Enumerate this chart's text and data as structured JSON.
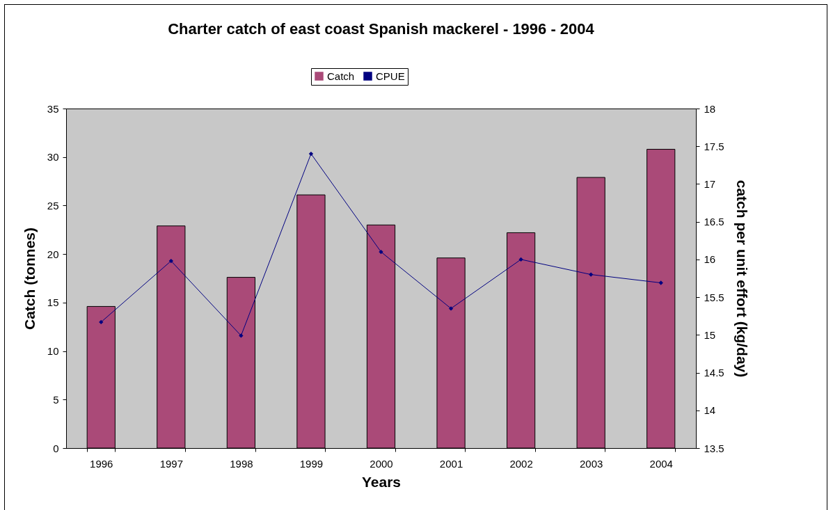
{
  "chart_data": {
    "type": "bar",
    "title": "Charter catch of east coast Spanish mackerel - 1996 - 2004",
    "xlabel": "Years",
    "ylabel": "Catch (tonnes)",
    "y2label": "catch per unit effort (kg/day)",
    "categories": [
      "1996",
      "1997",
      "1998",
      "1999",
      "2000",
      "2001",
      "2002",
      "2003",
      "2004"
    ],
    "series": [
      {
        "name": "Catch",
        "color": "#aa4a78",
        "values": [
          14.6,
          22.9,
          17.6,
          26.1,
          23.0,
          19.6,
          22.2,
          27.9,
          30.8
        ]
      },
      {
        "name": "CPUE",
        "type": "line",
        "axis": "y2",
        "color": "#000080",
        "values": [
          15.17,
          15.98,
          14.99,
          17.4,
          16.1,
          15.35,
          16.0,
          15.8,
          15.69
        ]
      }
    ],
    "ylim": [
      0,
      35
    ],
    "yticks": [
      0,
      5,
      10,
      15,
      20,
      25,
      30,
      35
    ],
    "y2lim": [
      13.5,
      18
    ],
    "y2ticks": [
      13.5,
      14,
      14.5,
      15,
      15.5,
      16,
      16.5,
      17,
      17.5,
      18
    ],
    "legend": "top",
    "marker": "diamond"
  }
}
